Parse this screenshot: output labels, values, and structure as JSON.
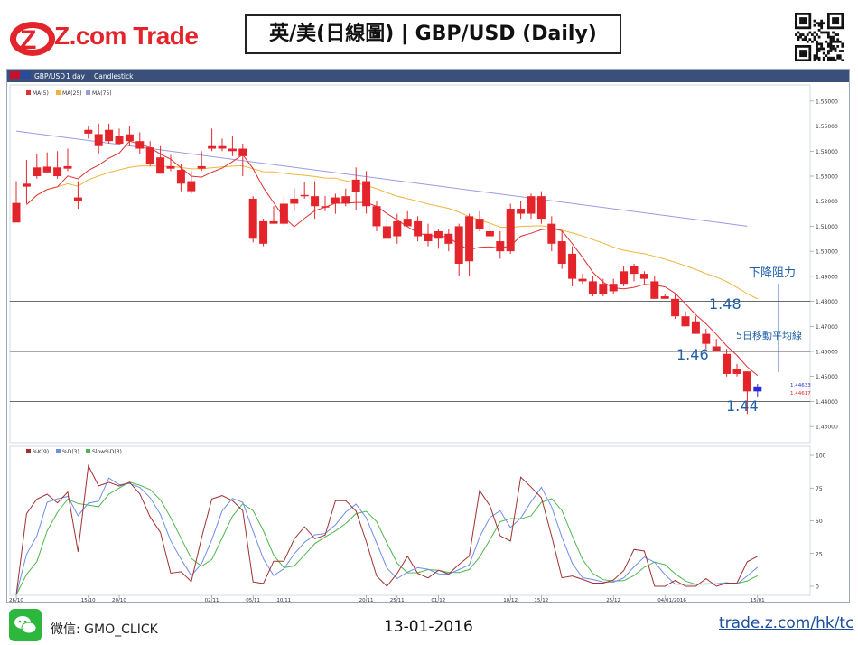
{
  "header": {
    "brand": "Z.com Trade",
    "title": "英/美(日線圖) | GBP/USD  (Daily)"
  },
  "toolbar": {
    "symbol": "GBP/USD",
    "period": "1 day",
    "chart_type": "Candlestick"
  },
  "colors": {
    "up": "#2b2bd6",
    "down": "#e3242b",
    "ma5": "#e03030",
    "ma25": "#f0b43c",
    "ma75": "#9a9ae0",
    "k": "#a03030",
    "d": "#6e8ee8",
    "slowd": "#4cb84c",
    "annotation": "#1f5fa8"
  },
  "chart_data": [
    {
      "type": "candlestick",
      "ylim": [
        1.425,
        1.565
      ],
      "yticks": [
        "1.43000",
        "1.44000",
        "1.45000",
        "1.46000",
        "1.47000",
        "1.48000",
        "1.49000",
        "1.50000",
        "1.51000",
        "1.52000",
        "1.53000",
        "1.54000",
        "1.55000",
        "1.56000"
      ],
      "horizontal_lines": [
        1.48,
        1.46,
        1.44
      ],
      "legend": [
        "MA(5)",
        "MA(25)",
        "MA(75)"
      ],
      "xticks": [
        {
          "i": 0,
          "label": "26/10"
        },
        {
          "i": 7,
          "label": "15/10"
        },
        {
          "i": 10,
          "label": "20/10"
        },
        {
          "i": 19,
          "label": "02/11"
        },
        {
          "i": 23,
          "label": "05/11"
        },
        {
          "i": 26,
          "label": "10/11"
        },
        {
          "i": 34,
          "label": "20/11"
        },
        {
          "i": 37,
          "label": "25/11"
        },
        {
          "i": 41,
          "label": "01/12"
        },
        {
          "i": 48,
          "label": "10/12"
        },
        {
          "i": 51,
          "label": "15/12"
        },
        {
          "i": 58,
          "label": "25/12"
        },
        {
          "i": 63,
          "label": "04/01/2016"
        },
        {
          "i": 72,
          "label": "15/01"
        }
      ],
      "candles": [
        [
          1.5193,
          1.528,
          1.5125,
          1.5115
        ],
        [
          1.527,
          1.5365,
          1.519,
          1.5258
        ],
        [
          1.5335,
          1.5388,
          1.529,
          1.53
        ],
        [
          1.5338,
          1.5395,
          1.5315,
          1.5315
        ],
        [
          1.5335,
          1.54,
          1.529,
          1.53
        ],
        [
          1.534,
          1.541,
          1.532,
          1.533
        ],
        [
          1.5215,
          1.528,
          1.517,
          1.52
        ],
        [
          1.5485,
          1.55,
          1.545,
          1.547
        ],
        [
          1.5468,
          1.551,
          1.539,
          1.542
        ],
        [
          1.5485,
          1.551,
          1.543,
          1.544
        ],
        [
          1.546,
          1.549,
          1.5425,
          1.543
        ],
        [
          1.5467,
          1.55,
          1.542,
          1.544
        ],
        [
          1.544,
          1.5475,
          1.539,
          1.541
        ],
        [
          1.5415,
          1.544,
          1.534,
          1.535
        ],
        [
          1.5375,
          1.542,
          1.531,
          1.531
        ],
        [
          1.534,
          1.5385,
          1.532,
          1.533
        ],
        [
          1.5325,
          1.535,
          1.524,
          1.527
        ],
        [
          1.528,
          1.532,
          1.523,
          1.524
        ],
        [
          1.534,
          1.54,
          1.532,
          1.533
        ],
        [
          1.542,
          1.549,
          1.54,
          1.541
        ],
        [
          1.542,
          1.545,
          1.54,
          1.541
        ],
        [
          1.541,
          1.546,
          1.538,
          1.54
        ],
        [
          1.541,
          1.543,
          1.53,
          1.538
        ],
        [
          1.521,
          1.522,
          1.5035,
          1.505
        ],
        [
          1.512,
          1.513,
          1.502,
          1.503
        ],
        [
          1.512,
          1.518,
          1.511,
          1.511
        ],
        [
          1.519,
          1.522,
          1.51,
          1.511
        ],
        [
          1.521,
          1.525,
          1.516,
          1.519
        ],
        [
          1.5225,
          1.5275,
          1.521,
          1.522
        ],
        [
          1.522,
          1.528,
          1.513,
          1.518
        ],
        [
          1.518,
          1.522,
          1.516,
          1.518
        ],
        [
          1.5215,
          1.523,
          1.515,
          1.519
        ],
        [
          1.522,
          1.525,
          1.518,
          1.519
        ],
        [
          1.5286,
          1.5335,
          1.5165,
          1.5235
        ],
        [
          1.528,
          1.532,
          1.515,
          1.518
        ],
        [
          1.518,
          1.52,
          1.508,
          1.51
        ],
        [
          1.51,
          1.514,
          1.505,
          1.505
        ],
        [
          1.512,
          1.515,
          1.503,
          1.506
        ],
        [
          1.513,
          1.516,
          1.51,
          1.51
        ],
        [
          1.512,
          1.514,
          1.504,
          1.506
        ],
        [
          1.507,
          1.511,
          1.502,
          1.504
        ],
        [
          1.508,
          1.509,
          1.501,
          1.505
        ],
        [
          1.507,
          1.509,
          1.5,
          1.503
        ],
        [
          1.51,
          1.511,
          1.49,
          1.495
        ],
        [
          1.514,
          1.515,
          1.49,
          1.496
        ],
        [
          1.513,
          1.516,
          1.508,
          1.509
        ],
        [
          1.508,
          1.511,
          1.505,
          1.506
        ],
        [
          1.504,
          1.508,
          1.497,
          1.5
        ],
        [
          1.517,
          1.519,
          1.499,
          1.5
        ],
        [
          1.517,
          1.52,
          1.513,
          1.515
        ],
        [
          1.522,
          1.523,
          1.513,
          1.515
        ],
        [
          1.522,
          1.524,
          1.511,
          1.513
        ],
        [
          1.511,
          1.514,
          1.5,
          1.503
        ],
        [
          1.504,
          1.508,
          1.493,
          1.495
        ],
        [
          1.499,
          1.502,
          1.486,
          1.489
        ],
        [
          1.489,
          1.491,
          1.487,
          1.488
        ],
        [
          1.488,
          1.49,
          1.482,
          1.483
        ],
        [
          1.487,
          1.489,
          1.482,
          1.483
        ],
        [
          1.487,
          1.489,
          1.483,
          1.484
        ],
        [
          1.492,
          1.494,
          1.486,
          1.487
        ],
        [
          1.494,
          1.495,
          1.488,
          1.491
        ],
        [
          1.491,
          1.492,
          1.487,
          1.489
        ],
        [
          1.488,
          1.49,
          1.481,
          1.481
        ],
        [
          1.482,
          1.483,
          1.481,
          1.481
        ],
        [
          1.481,
          1.483,
          1.473,
          1.474
        ],
        [
          1.474,
          1.476,
          1.47,
          1.47
        ],
        [
          1.472,
          1.474,
          1.467,
          1.467
        ],
        [
          1.467,
          1.469,
          1.461,
          1.463
        ],
        [
          1.462,
          1.465,
          1.46,
          1.46
        ],
        [
          1.459,
          1.461,
          1.45,
          1.451
        ],
        [
          1.453,
          1.455,
          1.45,
          1.451
        ],
        [
          1.452,
          1.452,
          1.435,
          1.444
        ],
        [
          1.444,
          1.447,
          1.442,
          1.446
        ]
      ],
      "ma75_endpoints": [
        [
          0,
          1.548
        ],
        [
          71,
          1.51
        ]
      ],
      "current_price_labels": [
        "1.44633",
        "1.44617"
      ]
    },
    {
      "type": "line",
      "ylim": [
        0,
        100
      ],
      "yticks": [
        "0",
        "25",
        "50",
        "75",
        "100"
      ],
      "legend": [
        "%K(9)",
        "%D(3)",
        "Slow%D(3)"
      ]
    }
  ],
  "annotations": {
    "resistance_label": "下降阻力",
    "ma5_label": "5日移動平均線",
    "level_148": "1.48",
    "level_146": "1.46",
    "level_144": "1.44"
  },
  "footer": {
    "wechat_label": "微信: GMO_CLICK",
    "date": "13-01-2016",
    "url": "trade.z.com/hk/tc"
  }
}
